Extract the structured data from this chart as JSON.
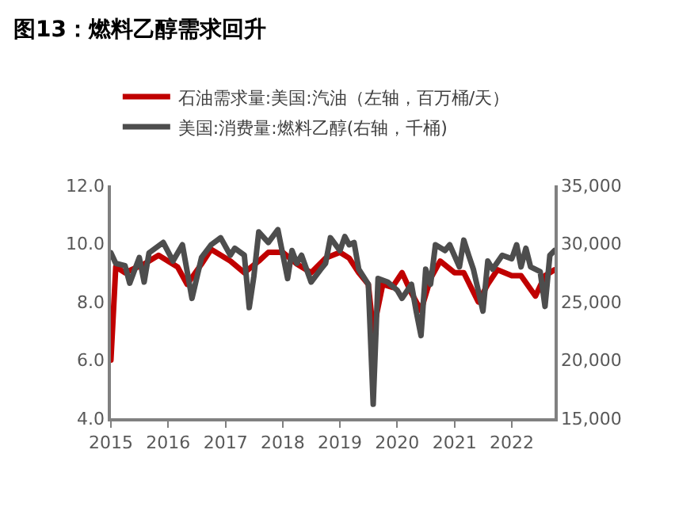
{
  "chart_data": {
    "type": "line",
    "title": "图13：燃料乙醇需求回升",
    "series": [
      {
        "name": "石油需求量:美国:汽油（左轴，百万桶/天）",
        "color": "#c00000",
        "x": [
          "2015-01",
          "2015-02",
          "2015-04",
          "2015-08",
          "2015-11",
          "2016-03",
          "2016-05",
          "2016-08",
          "2016-10",
          "2017-02",
          "2017-05",
          "2017-08",
          "2017-10",
          "2018-01",
          "2018-04",
          "2018-07",
          "2018-10",
          "2019-01",
          "2019-03",
          "2019-05",
          "2019-07",
          "2019-08",
          "2019-10",
          "2019-12",
          "2020-02",
          "2020-04",
          "2020-06",
          "2020-08",
          "2020-10",
          "2021-01",
          "2021-03",
          "2021-06",
          "2021-08",
          "2021-10",
          "2022-01",
          "2022-03",
          "2022-06",
          "2022-08",
          "2022-10"
        ],
        "values": [
          6.0,
          9.2,
          9.0,
          9.3,
          9.6,
          9.2,
          8.6,
          9.3,
          9.8,
          9.4,
          9.0,
          9.4,
          9.7,
          9.7,
          9.3,
          9.0,
          9.5,
          9.7,
          9.5,
          9.0,
          8.6,
          7.0,
          8.6,
          8.5,
          9.0,
          8.3,
          7.7,
          8.8,
          9.4,
          9.0,
          9.0,
          8.0,
          8.6,
          9.1,
          8.9,
          8.9,
          8.2,
          8.9,
          9.1
        ]
      },
      {
        "name": "美国:消费量:燃料乙醇(右轴，千桶)",
        "color": "#4d4d4d",
        "axis": "y2",
        "x": [
          "2015-01",
          "2015-02",
          "2015-04",
          "2015-05",
          "2015-07",
          "2015-08",
          "2015-09",
          "2015-12",
          "2016-02",
          "2016-04",
          "2016-06",
          "2016-08",
          "2016-10",
          "2016-12",
          "2017-02",
          "2017-03",
          "2017-05",
          "2017-06",
          "2017-07",
          "2017-08",
          "2017-10",
          "2017-12",
          "2018-02",
          "2018-03",
          "2018-04",
          "2018-05",
          "2018-07",
          "2018-09",
          "2018-10",
          "2018-11",
          "2019-01",
          "2019-02",
          "2019-03",
          "2019-04",
          "2019-05",
          "2019-07",
          "2019-08",
          "2019-09",
          "2019-11",
          "2020-01",
          "2020-02",
          "2020-04",
          "2020-05",
          "2020-06",
          "2020-07",
          "2020-08",
          "2020-09",
          "2020-11",
          "2020-12",
          "2021-02",
          "2021-03",
          "2021-04",
          "2021-05",
          "2021-07",
          "2021-08",
          "2021-09",
          "2021-11",
          "2022-01",
          "2022-02",
          "2022-03",
          "2022-04",
          "2022-05",
          "2022-07",
          "2022-08",
          "2022-09",
          "2022-10"
        ],
        "values": [
          29200,
          28300,
          28100,
          26600,
          28800,
          26700,
          29200,
          30100,
          28500,
          29900,
          25300,
          28800,
          29900,
          30500,
          29000,
          29600,
          29000,
          24500,
          27200,
          31000,
          30100,
          31200,
          27000,
          29400,
          28300,
          29000,
          26700,
          27800,
          28300,
          30500,
          29400,
          30600,
          29900,
          30100,
          27800,
          26500,
          16200,
          27000,
          26700,
          26000,
          25300,
          26500,
          24200,
          22100,
          27800,
          26500,
          29900,
          29400,
          29900,
          28000,
          30300,
          29000,
          27800,
          24200,
          28500,
          27800,
          29000,
          28700,
          29900,
          28000,
          29600,
          28000,
          27600,
          24600,
          29000,
          29400
        ]
      }
    ],
    "xlim": [
      "2015-01",
      "2022-10"
    ],
    "xticks": [
      "2015",
      "2016",
      "2017",
      "2018",
      "2019",
      "2020",
      "2021",
      "2022"
    ],
    "ylim": [
      4,
      12
    ],
    "yticks": [
      {
        "value": 4,
        "label": "4.0"
      },
      {
        "value": 6,
        "label": "6.0"
      },
      {
        "value": 8,
        "label": "8.0"
      },
      {
        "value": 10,
        "label": "10.0"
      },
      {
        "value": 12,
        "label": "12.0"
      }
    ],
    "y2lim": [
      15000,
      35000
    ],
    "y2ticks": [
      {
        "value": 15000,
        "label": "15,000"
      },
      {
        "value": 20000,
        "label": "20,000"
      },
      {
        "value": 25000,
        "label": "25,000"
      },
      {
        "value": 30000,
        "label": "30,000"
      },
      {
        "value": 35000,
        "label": "35,000"
      }
    ],
    "legend": "top",
    "marker": "none",
    "line_style": "solid"
  }
}
